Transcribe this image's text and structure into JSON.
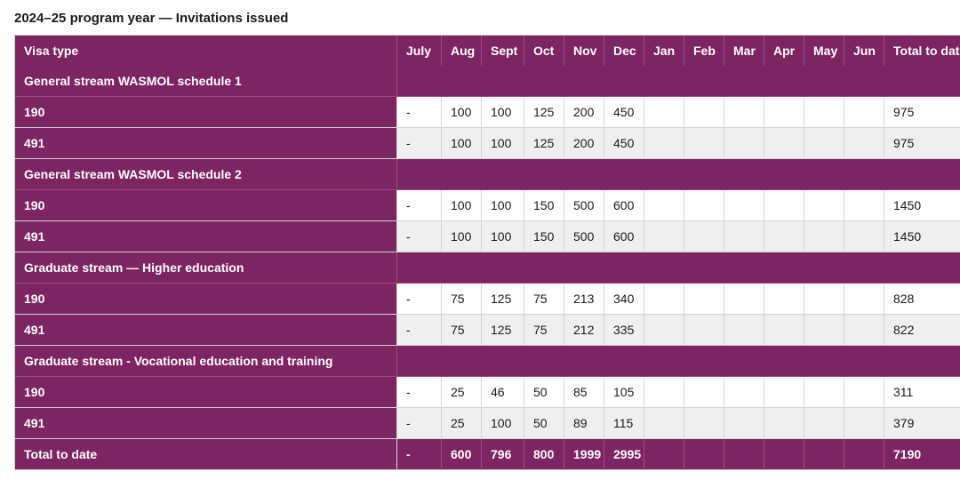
{
  "title": "2024–25 program year — Invitations issued",
  "colors": {
    "header_bg": "#7d2462",
    "header_fg": "#ffffff",
    "row_odd_bg": "#ffffff",
    "row_even_bg": "#efefef",
    "border": "#d4d4d4",
    "inner_border": "#9a4a80"
  },
  "table": {
    "columns": [
      "Visa type",
      "July",
      "Aug",
      "Sept",
      "Oct",
      "Nov",
      "Dec",
      "Jan",
      "Feb",
      "Mar",
      "Apr",
      "May",
      "Jun",
      "Total to date"
    ],
    "sections": [
      {
        "label": "General stream WASMOL schedule 1",
        "rows": [
          {
            "visa": "190",
            "values": [
              "-",
              "100",
              "100",
              "125",
              "200",
              "450",
              "",
              "",
              "",
              "",
              "",
              "",
              "975"
            ]
          },
          {
            "visa": "491",
            "values": [
              "-",
              "100",
              "100",
              "125",
              "200",
              "450",
              "",
              "",
              "",
              "",
              "",
              "",
              "975"
            ]
          }
        ]
      },
      {
        "label": "General stream WASMOL schedule 2",
        "rows": [
          {
            "visa": "190",
            "values": [
              "-",
              "100",
              "100",
              "150",
              "500",
              "600",
              "",
              "",
              "",
              "",
              "",
              "",
              "1450"
            ]
          },
          {
            "visa": "491",
            "values": [
              "-",
              "100",
              "100",
              "150",
              "500",
              "600",
              "",
              "",
              "",
              "",
              "",
              "",
              "1450"
            ]
          }
        ]
      },
      {
        "label": "Graduate stream — Higher education",
        "rows": [
          {
            "visa": "190",
            "values": [
              "-",
              "75",
              "125",
              "75",
              "213",
              "340",
              "",
              "",
              "",
              "",
              "",
              "",
              "828"
            ]
          },
          {
            "visa": "491",
            "values": [
              "-",
              "75",
              "125",
              "75",
              "212",
              "335",
              "",
              "",
              "",
              "",
              "",
              "",
              "822"
            ]
          }
        ]
      },
      {
        "label": "Graduate stream - Vocational education and training",
        "rows": [
          {
            "visa": "190",
            "values": [
              "-",
              "25",
              "46",
              "50",
              "85",
              "105",
              "",
              "",
              "",
              "",
              "",
              "",
              "311"
            ]
          },
          {
            "visa": "491",
            "values": [
              "-",
              "25",
              "100",
              "50",
              "89",
              "115",
              "",
              "",
              "",
              "",
              "",
              "",
              "379"
            ]
          }
        ]
      }
    ],
    "total_row": {
      "label": "Total to date",
      "values": [
        "-",
        "600",
        "796",
        "800",
        "1999",
        "2995",
        "",
        "",
        "",
        "",
        "",
        "",
        "7190"
      ]
    }
  }
}
